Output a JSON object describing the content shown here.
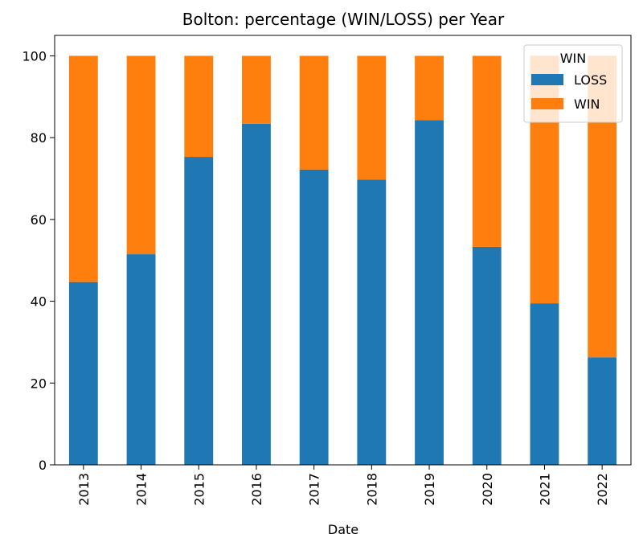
{
  "chart_data": {
    "type": "bar",
    "stacked": true,
    "title": "Bolton: percentage (WIN/LOSS) per Year",
    "xlabel": "Date",
    "ylabel": "",
    "ylim": [
      0,
      105
    ],
    "yticks": [
      0,
      20,
      40,
      60,
      80,
      100
    ],
    "grid": false,
    "categories": [
      "2013",
      "2014",
      "2015",
      "2016",
      "2017",
      "2018",
      "2019",
      "2020",
      "2021",
      "2022"
    ],
    "legend": {
      "title": "WIN",
      "placement": "top-right"
    },
    "series": [
      {
        "name": "LOSS",
        "color": "#1f77b4",
        "values": [
          44.7,
          51.5,
          75.3,
          83.4,
          72.2,
          69.7,
          84.3,
          53.3,
          39.5,
          26.3
        ]
      },
      {
        "name": "WIN",
        "color": "#ff7f0e",
        "values": [
          55.3,
          48.5,
          24.7,
          16.6,
          27.8,
          30.3,
          15.7,
          46.7,
          60.5,
          73.7
        ]
      }
    ]
  }
}
